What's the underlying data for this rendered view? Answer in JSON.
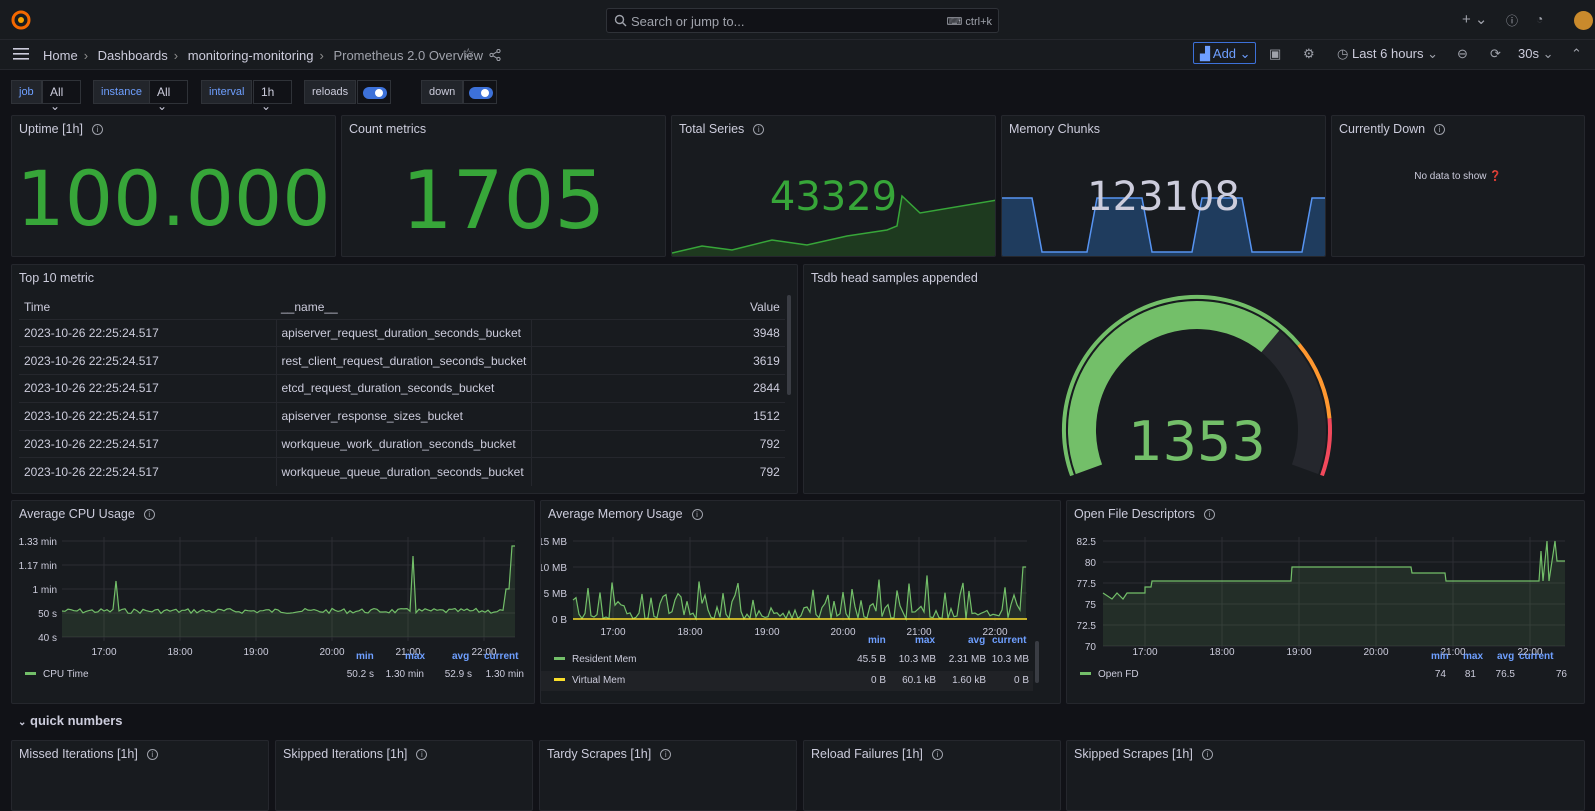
{
  "topbar": {
    "search_placeholder": "Search or jump to...",
    "search_shortcut": "ctrl+k"
  },
  "breadcrumb": {
    "home": "Home",
    "dashboards": "Dashboards",
    "folder": "monitoring-monitoring",
    "current": "Prometheus 2.0 Overview"
  },
  "toolbar": {
    "add_label": "Add",
    "time_range": "Last 6 hours",
    "refresh_interval": "30s"
  },
  "variables": {
    "job_label": "job",
    "job_value": "All",
    "instance_label": "instance",
    "instance_value": "All",
    "interval_label": "interval",
    "interval_value": "1h",
    "reloads_label": "reloads",
    "down_label": "down"
  },
  "stats": {
    "uptime": {
      "title": "Uptime [1h]",
      "value": "100.000"
    },
    "count_metrics": {
      "title": "Count metrics",
      "value": "1705"
    },
    "total_series": {
      "title": "Total Series",
      "value": "43329"
    },
    "memory_chunks": {
      "title": "Memory Chunks",
      "value": "123108"
    },
    "currently_down": {
      "title": "Currently Down",
      "message": "No data to show"
    }
  },
  "top_metrics": {
    "title": "Top 10 metric",
    "columns": [
      "Time",
      "__name__",
      "Value"
    ],
    "rows": [
      [
        "2023-10-26 22:25:24.517",
        "apiserver_request_duration_seconds_bucket",
        "3948"
      ],
      [
        "2023-10-26 22:25:24.517",
        "rest_client_request_duration_seconds_bucket",
        "3619"
      ],
      [
        "2023-10-26 22:25:24.517",
        "etcd_request_duration_seconds_bucket",
        "2844"
      ],
      [
        "2023-10-26 22:25:24.517",
        "apiserver_response_sizes_bucket",
        "1512"
      ],
      [
        "2023-10-26 22:25:24.517",
        "workqueue_work_duration_seconds_bucket",
        "792"
      ],
      [
        "2023-10-26 22:25:24.517",
        "workqueue_queue_duration_seconds_bucket",
        "792"
      ]
    ]
  },
  "gauge": {
    "title": "Tsdb head samples appended",
    "value": "1353",
    "fraction": 0.68
  },
  "cpu": {
    "title": "Average CPU Usage",
    "yticks": [
      "1.33 min",
      "1.17 min",
      "1 min",
      "50 s",
      "40 s"
    ],
    "xticks": [
      "17:00",
      "18:00",
      "19:00",
      "20:00",
      "21:00",
      "22:00"
    ],
    "legend_headers": [
      "min",
      "max",
      "avg",
      "current"
    ],
    "series": [
      {
        "name": "CPU Time",
        "min": "50.2 s",
        "max": "1.30 min",
        "avg": "52.9 s",
        "current": "1.30 min"
      }
    ]
  },
  "memory": {
    "title": "Average Memory Usage",
    "yticks": [
      "15 MB",
      "10 MB",
      "5 MB",
      "0 B"
    ],
    "xticks": [
      "17:00",
      "18:00",
      "19:00",
      "20:00",
      "21:00",
      "22:00"
    ],
    "legend_headers": [
      "min",
      "max",
      "avg",
      "current"
    ],
    "series": [
      {
        "name": "Resident Mem",
        "min": "45.5 B",
        "max": "10.3 MB",
        "avg": "2.31 MB",
        "current": "10.3 MB"
      },
      {
        "name": "Virtual Mem",
        "min": "0 B",
        "max": "60.1 kB",
        "avg": "1.60 kB",
        "current": "0 B"
      }
    ]
  },
  "fd": {
    "title": "Open File Descriptors",
    "yticks": [
      "82.5",
      "80",
      "77.5",
      "75",
      "72.5",
      "70"
    ],
    "xticks": [
      "17:00",
      "18:00",
      "19:00",
      "20:00",
      "21:00",
      "22:00"
    ],
    "legend_headers": [
      "min",
      "max",
      "avg",
      "current"
    ],
    "series": [
      {
        "name": "Open FD",
        "min": "74",
        "max": "81",
        "avg": "76.5",
        "current": "76"
      }
    ]
  },
  "row": {
    "title": "quick numbers"
  },
  "quick": [
    "Missed Iterations [1h]",
    "Skipped Iterations [1h]",
    "Tardy Scrapes [1h]",
    "Reload Failures [1h]",
    "Skipped Scrapes [1h]"
  ],
  "colors": {
    "green": "#37a639",
    "line_green": "#73bf69",
    "blue": "#3d71d9",
    "yellow": "#fade2a",
    "bg": "#111217",
    "panel": "#181b1f"
  }
}
